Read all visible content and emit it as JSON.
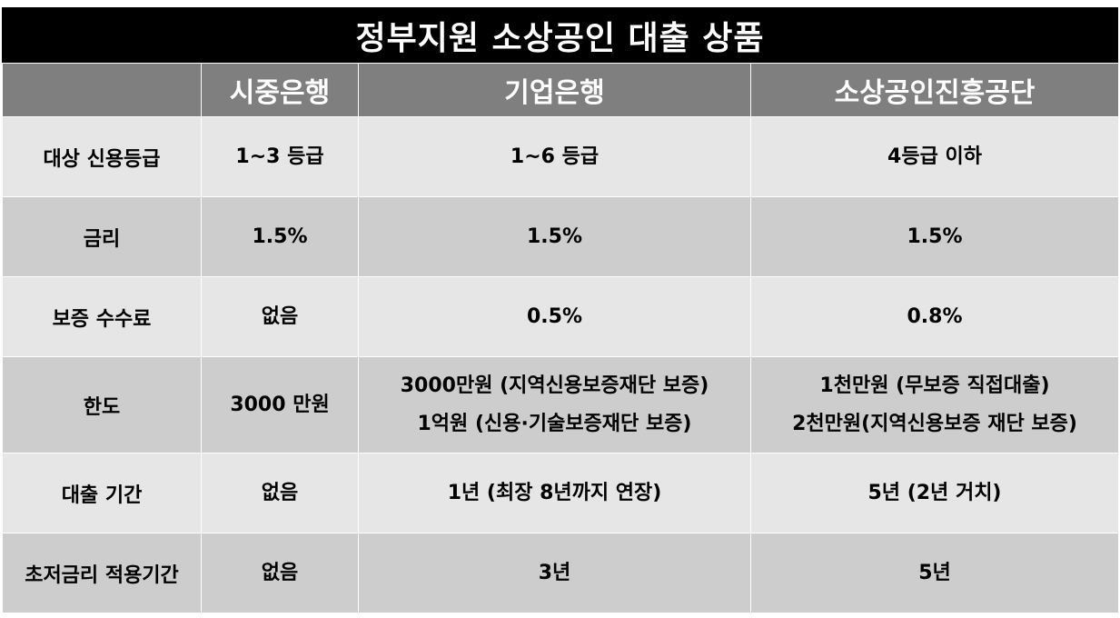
{
  "title": "정부지원 소상공인 대출 상품",
  "columns": [
    "",
    "시중은행",
    "기업은행",
    "소상공인진흥공단"
  ],
  "rows": [
    {
      "label": "대상 신용등급",
      "cells": [
        [
          "1~3 등급"
        ],
        [
          "1~6 등급"
        ],
        [
          "4등급 이하"
        ]
      ]
    },
    {
      "label": "금리",
      "cells": [
        [
          "1.5%"
        ],
        [
          "1.5%"
        ],
        [
          "1.5%"
        ]
      ]
    },
    {
      "label": "보증 수수료",
      "cells": [
        [
          "없음"
        ],
        [
          "0.5%"
        ],
        [
          "0.8%"
        ]
      ]
    },
    {
      "label": "한도",
      "cells": [
        [
          "3000 만원"
        ],
        [
          "3000만원 (지역신용보증재단 보증)",
          "1억원 (신용·기술보증재단 보증)"
        ],
        [
          "1천만원 (무보증 직접대출)",
          "2천만원(지역신용보증 재단 보증)"
        ]
      ]
    },
    {
      "label": "대출 기간",
      "cells": [
        [
          "없음"
        ],
        [
          "1년 (최장 8년까지 연장)"
        ],
        [
          "5년 (2년 거치)"
        ]
      ]
    },
    {
      "label": "초저금리 적용기간",
      "cells": [
        [
          "없음"
        ],
        [
          "3년"
        ],
        [
          "5년"
        ]
      ]
    }
  ],
  "colors": {
    "title_bg": "#000000",
    "header_bg": "#7f7f7f",
    "row_light": "#e6e6e6",
    "row_dark": "#cdcdcd"
  }
}
